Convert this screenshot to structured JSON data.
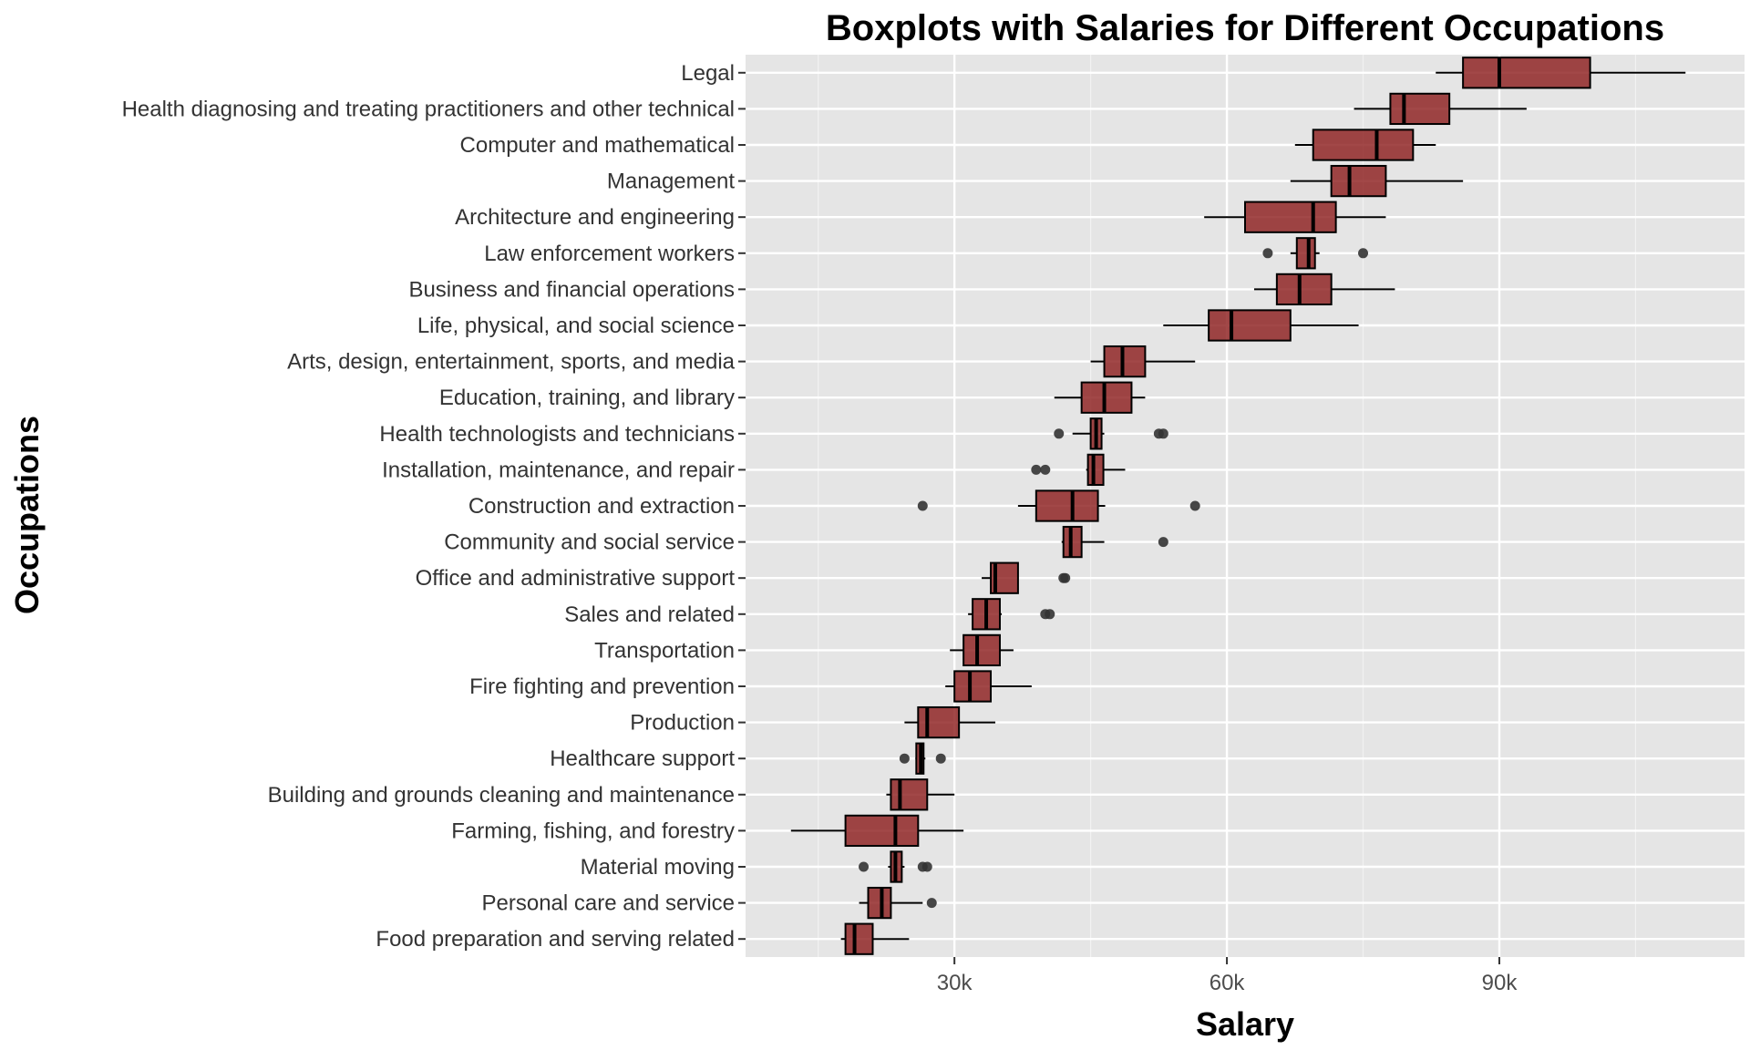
{
  "chart_data": {
    "type": "boxplot",
    "title": "Boxplots with Salaries for Different Occupations",
    "xlabel": "Salary",
    "ylabel": "Occupations",
    "xlim": [
      7000,
      117000
    ],
    "x_ticks": [
      30000,
      60000,
      90000
    ],
    "x_tick_labels": [
      "30k",
      "60k",
      "90k"
    ],
    "grid": true,
    "panel_background": "#e5e5e5",
    "box_fill": "#8b1a1a",
    "outlier_color": "#333333",
    "categories": [
      {
        "name": "Legal",
        "whisker_low": 83000,
        "q1": 86000,
        "median": 90000,
        "q3": 100000,
        "whisker_high": 110500,
        "outliers": []
      },
      {
        "name": "Health diagnosing and treating practitioners and other technical",
        "whisker_low": 74000,
        "q1": 78000,
        "median": 79500,
        "q3": 84500,
        "whisker_high": 93000,
        "outliers": []
      },
      {
        "name": "Computer and mathematical",
        "whisker_low": 67500,
        "q1": 69500,
        "median": 76500,
        "q3": 80500,
        "whisker_high": 83000,
        "outliers": []
      },
      {
        "name": "Management",
        "whisker_low": 67000,
        "q1": 71500,
        "median": 73500,
        "q3": 77500,
        "whisker_high": 86000,
        "outliers": []
      },
      {
        "name": "Architecture and engineering",
        "whisker_low": 57500,
        "q1": 62000,
        "median": 69500,
        "q3": 72000,
        "whisker_high": 77500,
        "outliers": []
      },
      {
        "name": "Law enforcement workers",
        "whisker_low": 67000,
        "q1": 67700,
        "median": 69000,
        "q3": 69700,
        "whisker_high": 70200,
        "outliers": [
          64500,
          75000
        ]
      },
      {
        "name": "Business and financial operations",
        "whisker_low": 63000,
        "q1": 65500,
        "median": 68000,
        "q3": 71500,
        "whisker_high": 78500,
        "outliers": []
      },
      {
        "name": "Life, physical, and social science",
        "whisker_low": 53000,
        "q1": 58000,
        "median": 60500,
        "q3": 67000,
        "whisker_high": 74500,
        "outliers": []
      },
      {
        "name": "Arts, design, entertainment, sports, and media",
        "whisker_low": 45000,
        "q1": 46500,
        "median": 48500,
        "q3": 51000,
        "whisker_high": 56500,
        "outliers": []
      },
      {
        "name": "Education, training, and library",
        "whisker_low": 41000,
        "q1": 44000,
        "median": 46500,
        "q3": 49500,
        "whisker_high": 51000,
        "outliers": []
      },
      {
        "name": "Health technologists and technicians",
        "whisker_low": 43000,
        "q1": 45000,
        "median": 45600,
        "q3": 46200,
        "whisker_high": 46500,
        "outliers": [
          41500,
          52500,
          53000
        ]
      },
      {
        "name": "Installation, maintenance, and repair",
        "whisker_low": 44500,
        "q1": 44700,
        "median": 45300,
        "q3": 46400,
        "whisker_high": 48800,
        "outliers": [
          39000,
          40000
        ]
      },
      {
        "name": "Construction and extraction",
        "whisker_low": 37000,
        "q1": 39000,
        "median": 43000,
        "q3": 45800,
        "whisker_high": 46600,
        "outliers": [
          26500,
          56500
        ]
      },
      {
        "name": "Community and social service",
        "whisker_low": 41800,
        "q1": 42000,
        "median": 42800,
        "q3": 44000,
        "whisker_high": 46500,
        "outliers": [
          53000
        ]
      },
      {
        "name": "Office and administrative support",
        "whisker_low": 33000,
        "q1": 34000,
        "median": 34500,
        "q3": 37000,
        "whisker_high": 37000,
        "outliers": [
          42000,
          42200
        ]
      },
      {
        "name": "Sales and related",
        "whisker_low": 31500,
        "q1": 32000,
        "median": 33500,
        "q3": 35000,
        "whisker_high": 35200,
        "outliers": [
          40000,
          40500
        ]
      },
      {
        "name": "Transportation",
        "whisker_low": 29500,
        "q1": 31000,
        "median": 32500,
        "q3": 35000,
        "whisker_high": 36500,
        "outliers": []
      },
      {
        "name": "Fire fighting and prevention",
        "whisker_low": 29000,
        "q1": 30000,
        "median": 31700,
        "q3": 34000,
        "whisker_high": 38500,
        "outliers": []
      },
      {
        "name": "Production",
        "whisker_low": 24500,
        "q1": 26000,
        "median": 27000,
        "q3": 30500,
        "whisker_high": 34500,
        "outliers": []
      },
      {
        "name": "Healthcare support",
        "whisker_low": 25700,
        "q1": 25800,
        "median": 26300,
        "q3": 26600,
        "whisker_high": 26800,
        "outliers": [
          24500,
          28500
        ]
      },
      {
        "name": "Building and grounds cleaning and maintenance",
        "whisker_low": 22500,
        "q1": 23000,
        "median": 24000,
        "q3": 27000,
        "whisker_high": 30000,
        "outliers": []
      },
      {
        "name": "Farming, fishing, and forestry",
        "whisker_low": 12000,
        "q1": 18000,
        "median": 23500,
        "q3": 26000,
        "whisker_high": 31000,
        "outliers": []
      },
      {
        "name": "Material moving",
        "whisker_low": 22700,
        "q1": 23000,
        "median": 23500,
        "q3": 24200,
        "whisker_high": 24500,
        "outliers": [
          20000,
          26500,
          27000
        ]
      },
      {
        "name": "Personal care and service",
        "whisker_low": 19500,
        "q1": 20500,
        "median": 22000,
        "q3": 23000,
        "whisker_high": 26500,
        "outliers": [
          27500
        ]
      },
      {
        "name": "Food preparation and serving related",
        "whisker_low": 17500,
        "q1": 18000,
        "median": 19000,
        "q3": 21000,
        "whisker_high": 25000,
        "outliers": []
      }
    ]
  }
}
